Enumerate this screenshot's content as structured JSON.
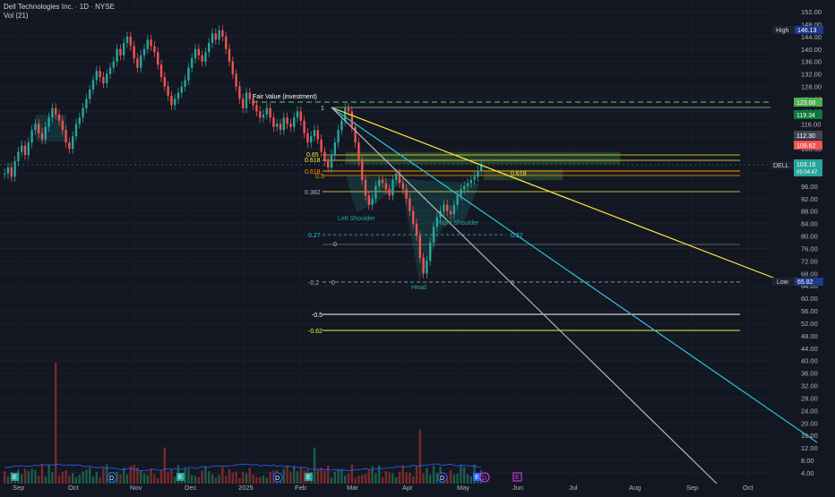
{
  "header": {
    "symbol_title": "Dell Technologies Inc. · 1D · NYSE",
    "volume_label": "Vol (21)"
  },
  "price_axis": {
    "ticks": [
      "152.00",
      "148.00",
      "144.00",
      "140.00",
      "136.00",
      "132.00",
      "128.00",
      "124.00",
      "120.00",
      "116.00",
      "112.00",
      "108.00",
      "104.00",
      "100.00",
      "96.00",
      "92.00",
      "88.00",
      "84.00",
      "80.00",
      "76.00",
      "72.00",
      "68.00",
      "64.00",
      "60.00",
      "56.00",
      "52.00",
      "48.00",
      "44.00",
      "40.00",
      "36.00",
      "32.00",
      "28.00",
      "24.00",
      "20.00",
      "16.00",
      "12.00",
      "8.00",
      "4.00"
    ],
    "tick_values": [
      152,
      148,
      144,
      140,
      136,
      132,
      128,
      124,
      120,
      116,
      112,
      108,
      104,
      100,
      96,
      92,
      88,
      84,
      80,
      76,
      72,
      68,
      64,
      60,
      56,
      52,
      48,
      44,
      40,
      36,
      32,
      28,
      24,
      20,
      16,
      12,
      8,
      4
    ]
  },
  "time_axis": {
    "labels": [
      "Sep",
      "Oct",
      "Nov",
      "Dec",
      "2025",
      "Feb",
      "Mar",
      "Apr",
      "May",
      "Jun",
      "Jul",
      "Aug",
      "Sep",
      "Oct"
    ]
  },
  "badges": {
    "high_label": "High",
    "high_value": "146.13",
    "low_label": "Low",
    "low_value": "65.82",
    "fair_value_level": "123.00",
    "level_119": "119.34",
    "level_112": "112.30",
    "level_109": "109.62",
    "dell_symbol": "DELL",
    "dell_price": "103.16",
    "dell_countdown": "05:04:47"
  },
  "colors": {
    "background": "#131722",
    "up": "#26a69a",
    "down": "#ef5350",
    "fair_value": "#4caf50",
    "yellow_line": "#ffeb3b",
    "cyan_line": "#26c6da",
    "white_line": "#b2b5be",
    "volume_line": "#2962ff"
  },
  "annotations": {
    "fair_value": "Fair Value (investment)",
    "left_shoulder": "Left Shoulder",
    "head": "Head",
    "right_shoulder": "Right Shoulder",
    "fib_1": "1",
    "fib_065": "0.65",
    "fib_0618a": "0.618",
    "fib_0618b": "0.618",
    "fib_05": "0.5",
    "fib_0382": "0.382",
    "fib_027a": "0.27",
    "fib_027b": "0.27",
    "fib_0a": "0",
    "fib_neg02": "-0.2",
    "fib_0b": "0",
    "fib_0c": "0",
    "fib_neg05": "-0.5",
    "fib_neg062": "-0.62",
    "fib_0618_right": "0.618"
  },
  "events": {
    "d1": "D",
    "e1": "E",
    "d2": "D",
    "e2": "E",
    "d3": "D",
    "e3": "E",
    "d4": "D",
    "e4": "E",
    "e5": "E"
  },
  "chart_data": {
    "type": "candlestick",
    "symbol": "DELL",
    "interval": "1D",
    "exchange": "NYSE",
    "high": 146.13,
    "low": 65.82,
    "last": 103.16,
    "ylim": [
      4,
      152
    ],
    "key_levels": [
      123.0,
      119.34,
      112.3,
      109.62,
      103.16
    ],
    "closes": [
      100,
      102,
      99,
      104,
      107,
      109,
      106,
      110,
      114,
      116,
      113,
      111,
      115,
      118,
      121,
      119,
      117,
      114,
      110,
      108,
      112,
      116,
      118,
      121,
      124,
      127,
      130,
      133,
      131,
      129,
      132,
      134,
      136,
      140,
      138,
      142,
      144,
      141,
      137,
      134,
      138,
      140,
      143,
      141,
      139,
      135,
      131,
      128,
      125,
      122,
      124,
      126,
      128,
      130,
      134,
      137,
      140,
      138,
      136,
      139,
      142,
      145,
      143,
      146,
      144,
      140,
      136,
      132,
      128,
      124,
      121,
      126,
      124,
      122,
      120,
      118,
      119,
      121,
      118,
      115,
      116,
      114,
      118,
      116,
      115,
      118,
      120,
      117,
      113,
      110,
      112,
      114,
      111,
      107,
      104,
      102,
      106,
      110,
      114,
      117,
      121,
      120,
      115,
      110,
      104,
      98,
      93,
      90,
      92,
      96,
      98,
      97,
      95,
      93,
      98,
      100,
      97,
      95,
      92,
      88,
      84,
      80,
      73,
      68,
      72,
      78,
      83,
      86,
      88,
      90,
      88,
      87,
      90,
      93,
      95,
      96,
      97,
      98,
      99,
      101,
      103
    ]
  }
}
